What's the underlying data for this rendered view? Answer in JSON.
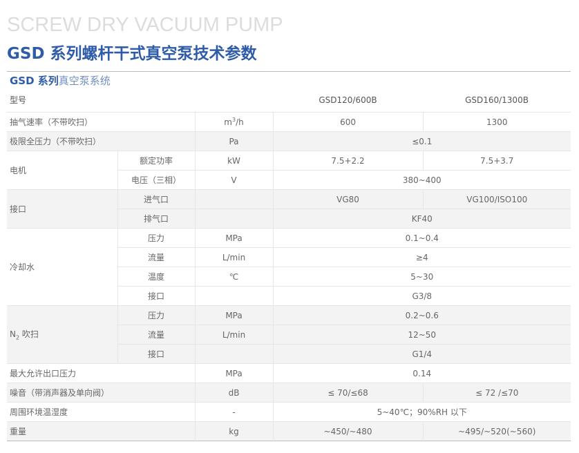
{
  "title_en": "SCREW DRY VACUUM PUMP",
  "title_cn": "GSD 系列螺杆干式真空泵技术参数",
  "subtitle_bold": "GSD 系列",
  "subtitle_light": "真空泵系统",
  "model_label": "型号",
  "models": [
    "GSD120/600B",
    "GSD160/1300B"
  ],
  "rows": {
    "speed": {
      "label": "抽气速率（不带吹扫）",
      "unit_base": "m",
      "unit_sup": "3",
      "unit_tail": "/h",
      "v1": "600",
      "v2": "1300"
    },
    "ult": {
      "label": "极限全压力（不带吹扫）",
      "unit": "Pa",
      "v": "≤0.1"
    },
    "motor": {
      "label": "电机",
      "power": "额定功率",
      "power_unit": "kW",
      "power_v1": "7.5+2.2",
      "power_v2": "7.5+3.7",
      "volt": "电压（三相）",
      "volt_unit": "V",
      "volt_v": "380~400"
    },
    "port": {
      "label": "接口",
      "in": "进气口",
      "in_v1": "VG80",
      "in_v2": "VG100/ISO100",
      "out": "排气口",
      "out_v": "KF40"
    },
    "cool": {
      "label": "冷却水",
      "p": "压力",
      "p_unit": "MPa",
      "p_v": "0.1~0.4",
      "f": "流量",
      "f_unit": "L/min",
      "f_v": "≥4",
      "t": "温度",
      "t_unit": "℃",
      "t_v": "5~30",
      "c": "接口",
      "c_v": "G3/8"
    },
    "n2": {
      "label_base": "N",
      "label_sub": "2",
      "label_tail": " 吹扫",
      "p": "压力",
      "p_unit": "MPa",
      "p_v": "0.2~0.6",
      "f": "流量",
      "f_unit": "L/min",
      "f_v": "12~50",
      "c": "接口",
      "c_v": "G1/4"
    },
    "maxp": {
      "label": "最大允许出口压力",
      "unit": "MPa",
      "v": "0.14"
    },
    "noise": {
      "label": "噪音（带消声器及单向阀）",
      "unit": "dB",
      "v1": "≤ 70/≤68",
      "v2": "≤ 72 /≤70"
    },
    "env": {
      "label": "周围环境温湿度",
      "unit": "-",
      "v": "5~40℃；90%RH 以下"
    },
    "weight": {
      "label": "重量",
      "unit": "kg",
      "v1": "~450/~480",
      "v2": "~495/~520(~560)"
    }
  }
}
